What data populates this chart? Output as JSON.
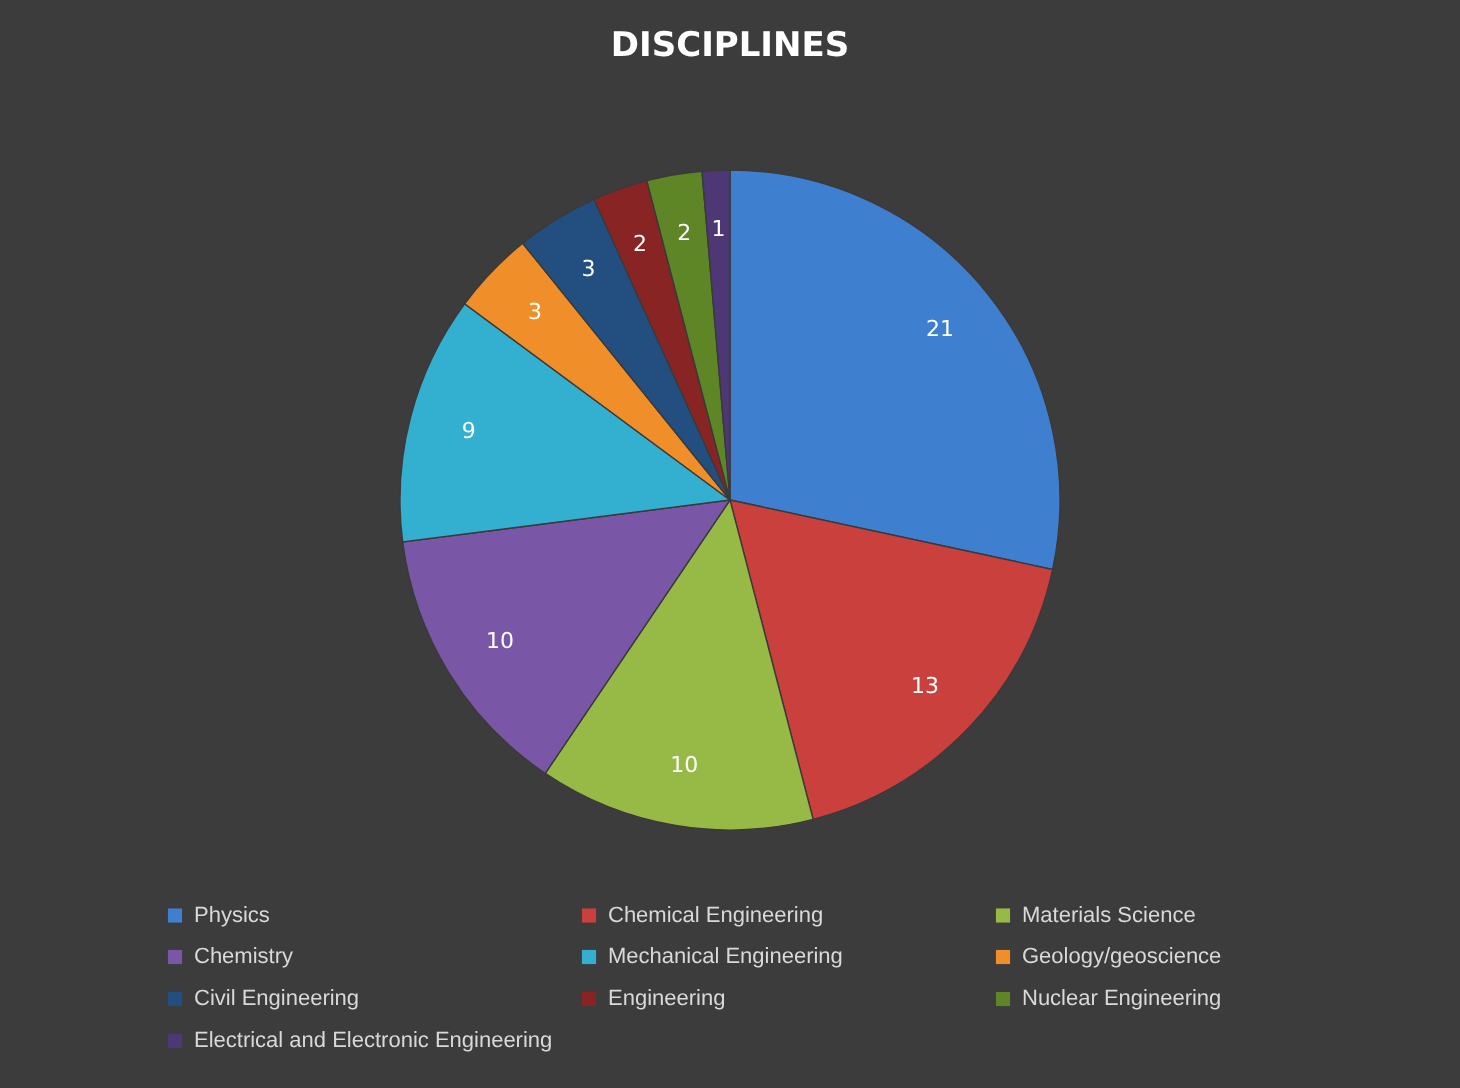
{
  "chart_data": {
    "type": "pie",
    "title": "DISCIPLINES",
    "categories": [
      "Physics",
      "Chemical Engineering",
      "Materials Science",
      "Chemistry",
      "Mechanical Engineering",
      "Geology/geoscience",
      "Civil Engineering",
      "Engineering",
      "Nuclear Engineering",
      "Electrical and Electronic Engineering"
    ],
    "values": [
      21,
      13,
      10,
      10,
      9,
      3,
      3,
      2,
      2,
      1
    ],
    "colors": [
      "#3f7fcf",
      "#c9403c",
      "#97b946",
      "#7a57a6",
      "#33b0d0",
      "#f08f2a",
      "#234f80",
      "#882424",
      "#5e8526",
      "#4d3774"
    ],
    "data_labels": true,
    "legend": "bottom"
  }
}
